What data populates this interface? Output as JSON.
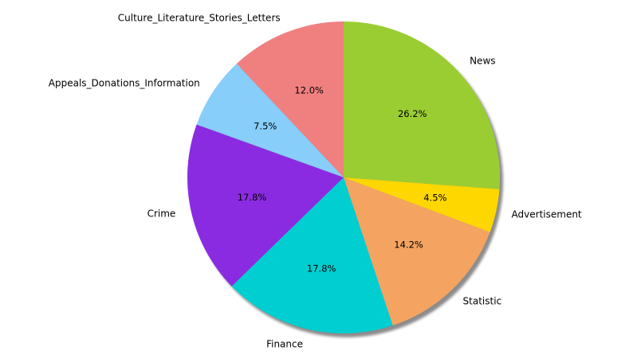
{
  "chart_data": {
    "type": "pie",
    "start_angle_deg": 90,
    "direction": "counterclockwise",
    "shadow": true,
    "slices": [
      {
        "label": "Culture_Literature_Stories_Letters",
        "value": 12.0,
        "pct_text": "12.0%",
        "color": "#F08080"
      },
      {
        "label": "Appeals_Donations_Information",
        "value": 7.5,
        "pct_text": "7.5%",
        "color": "#87CEFA"
      },
      {
        "label": "Crime",
        "value": 17.8,
        "pct_text": "17.8%",
        "color": "#8A2BE2"
      },
      {
        "label": "Finance",
        "value": 17.8,
        "pct_text": "17.8%",
        "color": "#00CED1"
      },
      {
        "label": "Statistic",
        "value": 14.2,
        "pct_text": "14.2%",
        "color": "#F4A460"
      },
      {
        "label": "Advertisement",
        "value": 4.5,
        "pct_text": "4.5%",
        "color": "#FFD700"
      },
      {
        "label": "News",
        "value": 26.2,
        "pct_text": "26.2%",
        "color": "#9ACD32"
      }
    ]
  }
}
